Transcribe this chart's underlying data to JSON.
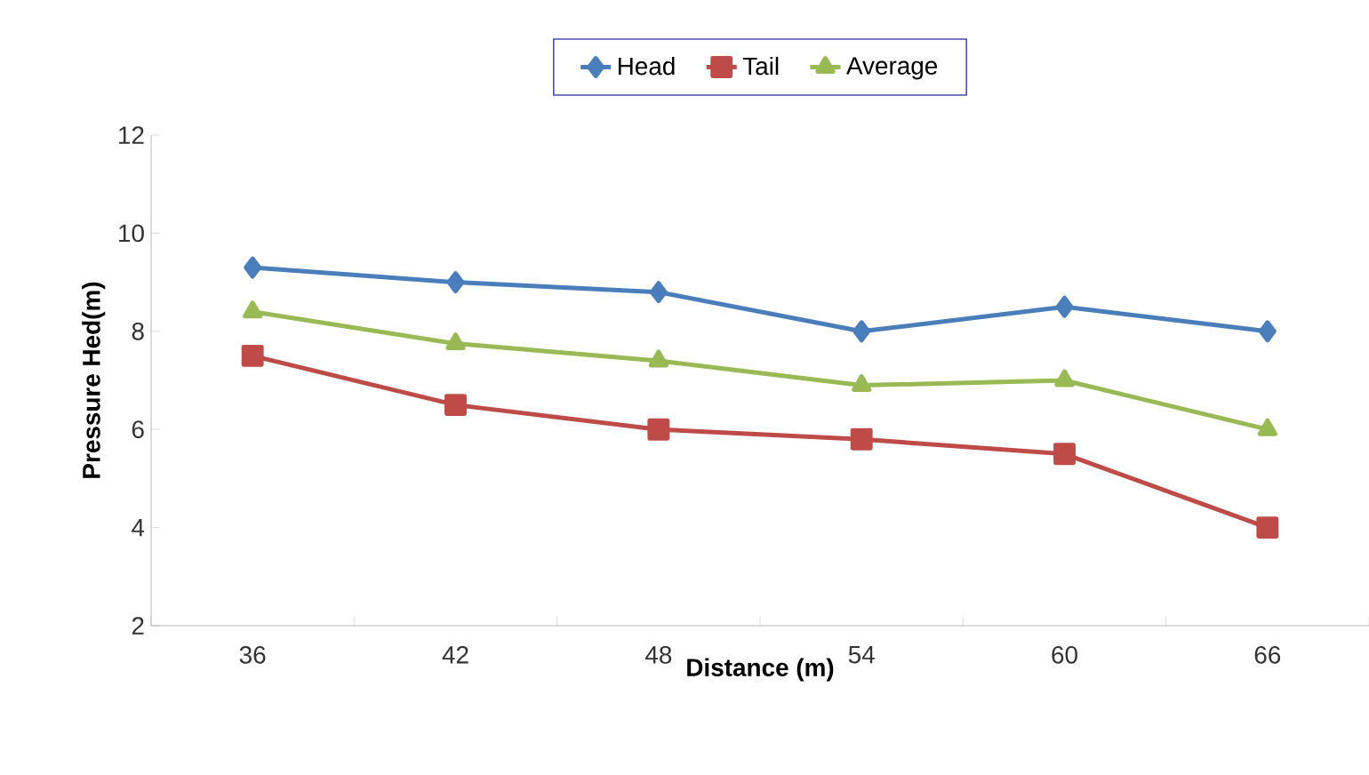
{
  "chart_data": {
    "type": "line",
    "xlabel": "Distance (m)",
    "ylabel": "Pressure Hed(m)",
    "categories": [
      "36",
      "42",
      "48",
      "54",
      "60",
      "66"
    ],
    "series": [
      {
        "name": "Head",
        "color": "#4a7ebb",
        "marker": "diamond",
        "values": [
          9.3,
          9.0,
          8.8,
          8.0,
          8.5,
          8.0
        ]
      },
      {
        "name": "Tail",
        "color": "#be4b48",
        "marker": "square",
        "values": [
          7.5,
          6.5,
          6.0,
          5.8,
          5.5,
          4.0
        ]
      },
      {
        "name": "Average",
        "color": "#98b954",
        "marker": "triangle",
        "values": [
          8.4,
          7.75,
          7.4,
          6.9,
          7.0,
          6.0
        ]
      }
    ],
    "ylim": [
      2,
      12
    ],
    "yticks": [
      2,
      4,
      6,
      8,
      10,
      12
    ],
    "grid": false,
    "legend": "top",
    "line_style": "solid"
  }
}
